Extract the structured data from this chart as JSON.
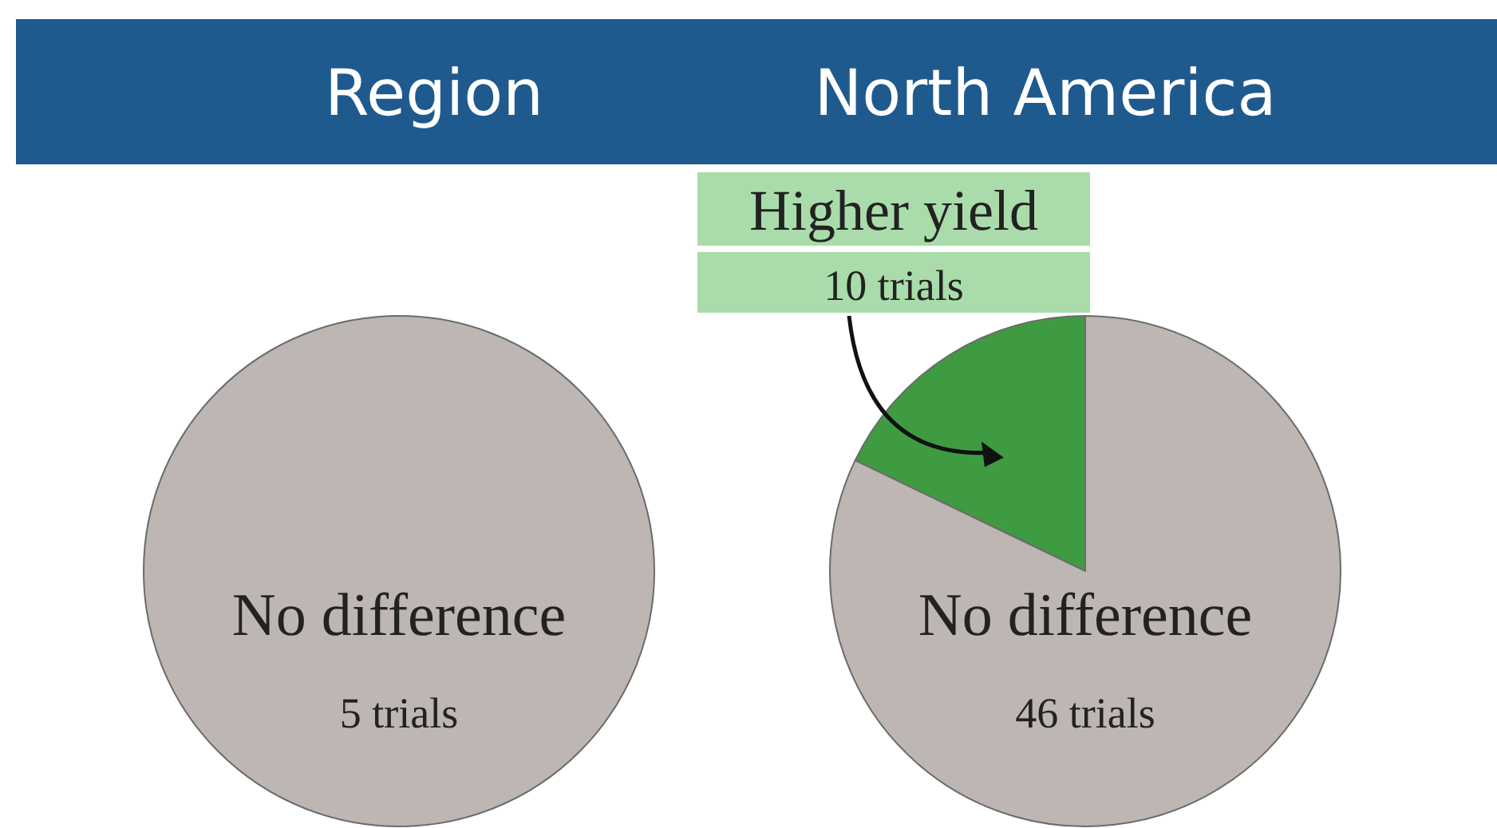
{
  "chart_data": [
    {
      "type": "pie",
      "title": "Region",
      "categories": [
        "No difference"
      ],
      "values": [
        5
      ],
      "colors": [
        "#bdb6b3"
      ],
      "value_labels": [
        "5 trials"
      ]
    },
    {
      "type": "pie",
      "title": "North America",
      "categories": [
        "Higher yield",
        "No difference"
      ],
      "values": [
        10,
        46
      ],
      "colors": [
        "#3f9b41",
        "#bdb6b3"
      ],
      "value_labels": [
        "10 trials",
        "46 trials"
      ]
    }
  ]
}
